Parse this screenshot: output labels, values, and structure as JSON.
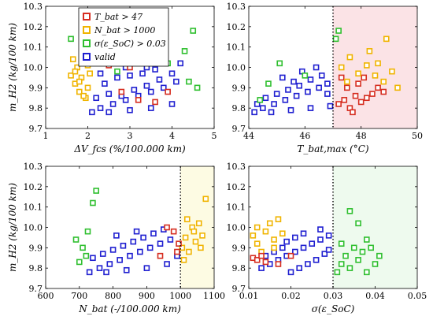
{
  "chart_data": [
    {
      "type": "scatter",
      "xlabel": "ΔV_fcs (%/100.000 km)",
      "ylabel": "m_H2 (kg/100 km)",
      "xlim": [
        1,
        5
      ],
      "ylim": [
        9.7,
        10.3
      ],
      "xticks": [
        "1",
        "2",
        "3",
        "4",
        "5"
      ],
      "yticks": [
        "9.7",
        "9.8",
        "9.9",
        "10.0",
        "10.1",
        "10.2",
        "10.3"
      ],
      "legend": {
        "position": "top-left",
        "entries": [
          {
            "label": "T_bat > 47",
            "color": "#d62d20"
          },
          {
            "label": "N_bat > 1000",
            "color": "#f0b400"
          },
          {
            "label": "σ(ε_SoC) > 0.03",
            "color": "#2fbf2f"
          },
          {
            "label": "valid",
            "color": "#1f1fd0"
          }
        ]
      },
      "series": [
        {
          "color": "#1f1fd0",
          "points": [
            [
              2.1,
              9.78
            ],
            [
              2.3,
              9.8
            ],
            [
              2.6,
              9.82
            ],
            [
              2.9,
              9.84
            ],
            [
              3.2,
              9.86
            ],
            [
              3.5,
              9.88
            ],
            [
              3.8,
              9.9
            ],
            [
              4.1,
              9.93
            ],
            [
              2.2,
              9.85
            ],
            [
              2.5,
              9.87
            ],
            [
              2.8,
              9.86
            ],
            [
              3.1,
              9.89
            ],
            [
              3.4,
              9.91
            ],
            [
              3.7,
              9.94
            ],
            [
              4.0,
              9.97
            ],
            [
              2.4,
              9.92
            ],
            [
              2.7,
              9.95
            ],
            [
              3.0,
              9.96
            ],
            [
              3.3,
              9.97
            ],
            [
              3.6,
              9.99
            ],
            [
              4.2,
              10.02
            ],
            [
              2.5,
              9.78
            ],
            [
              3.0,
              9.79
            ],
            [
              3.5,
              9.8
            ],
            [
              4.0,
              9.82
            ],
            [
              2.3,
              9.97
            ],
            [
              2.9,
              10.0
            ],
            [
              3.4,
              10.0
            ]
          ]
        },
        {
          "color": "#f0b400",
          "points": [
            [
              1.6,
              9.96
            ],
            [
              1.7,
              9.92
            ],
            [
              1.75,
              10.0
            ],
            [
              1.8,
              9.88
            ],
            [
              1.85,
              9.95
            ],
            [
              1.9,
              10.02
            ],
            [
              2.0,
              9.9
            ],
            [
              1.95,
              9.85
            ],
            [
              1.7,
              9.98
            ],
            [
              1.8,
              9.93
            ],
            [
              2.05,
              9.97
            ],
            [
              1.65,
              10.04
            ],
            [
              1.9,
              9.86
            ],
            [
              2.0,
              10.01
            ]
          ]
        },
        {
          "color": "#2fbf2f",
          "points": [
            [
              1.6,
              10.14
            ],
            [
              3.9,
              10.02
            ],
            [
              4.3,
              10.08
            ],
            [
              4.5,
              10.18
            ],
            [
              4.6,
              9.9
            ],
            [
              4.4,
              9.93
            ],
            [
              2.7,
              9.98
            ]
          ]
        },
        {
          "color": "#d62d20",
          "points": [
            [
              3.0,
              10.0
            ],
            [
              2.8,
              9.88
            ],
            [
              3.2,
              9.84
            ],
            [
              3.6,
              9.83
            ],
            [
              2.5,
              10.01
            ],
            [
              3.9,
              9.88
            ]
          ]
        }
      ]
    },
    {
      "type": "scatter",
      "xlabel": "T_bat,max (°C)",
      "ylabel": "",
      "xlim": [
        44,
        50
      ],
      "ylim": [
        9.7,
        10.3
      ],
      "xticks": [
        "44",
        "46",
        "48",
        "50"
      ],
      "yticks": [
        "9.7",
        "9.8",
        "9.9",
        "10.0",
        "10.1",
        "10.2",
        "10.3"
      ],
      "threshold_x": 47,
      "shade": {
        "from": 47,
        "to": 50,
        "color": "#fbe3e6"
      },
      "series": [
        {
          "color": "#1f1fd0",
          "points": [
            [
              44.2,
              9.78
            ],
            [
              44.5,
              9.8
            ],
            [
              44.9,
              9.82
            ],
            [
              45.3,
              9.84
            ],
            [
              45.7,
              9.86
            ],
            [
              46.1,
              9.88
            ],
            [
              46.5,
              9.9
            ],
            [
              46.8,
              9.92
            ],
            [
              44.6,
              9.85
            ],
            [
              45.0,
              9.87
            ],
            [
              45.4,
              9.89
            ],
            [
              45.8,
              9.91
            ],
            [
              46.2,
              9.94
            ],
            [
              46.6,
              9.96
            ],
            [
              44.8,
              9.78
            ],
            [
              45.5,
              9.79
            ],
            [
              46.2,
              9.8
            ],
            [
              46.9,
              9.81
            ],
            [
              45.2,
              9.95
            ],
            [
              45.9,
              9.98
            ],
            [
              46.4,
              10.0
            ],
            [
              46.8,
              9.87
            ],
            [
              44.3,
              9.82
            ],
            [
              45.6,
              9.93
            ]
          ]
        },
        {
          "color": "#d62d20",
          "points": [
            [
              47.2,
              9.82
            ],
            [
              47.4,
              9.84
            ],
            [
              47.6,
              9.8
            ],
            [
              47.8,
              9.86
            ],
            [
              48.0,
              9.83
            ],
            [
              48.2,
              9.85
            ],
            [
              47.5,
              9.9
            ],
            [
              47.9,
              9.92
            ],
            [
              48.4,
              9.87
            ],
            [
              48.6,
              9.9
            ],
            [
              47.3,
              9.95
            ],
            [
              48.8,
              9.88
            ],
            [
              47.7,
              9.78
            ],
            [
              48.1,
              9.95
            ]
          ]
        },
        {
          "color": "#f0b400",
          "points": [
            [
              47.3,
              10.0
            ],
            [
              47.6,
              10.05
            ],
            [
              47.9,
              9.97
            ],
            [
              48.2,
              10.01
            ],
            [
              48.5,
              9.96
            ],
            [
              48.8,
              9.93
            ],
            [
              49.1,
              9.98
            ],
            [
              48.9,
              10.14
            ],
            [
              48.3,
              10.08
            ],
            [
              47.5,
              9.93
            ],
            [
              48.6,
              10.02
            ],
            [
              49.3,
              9.9
            ]
          ]
        },
        {
          "color": "#2fbf2f",
          "points": [
            [
              44.7,
              9.92
            ],
            [
              47.1,
              10.14
            ],
            [
              47.2,
              10.18
            ],
            [
              45.1,
              10.02
            ],
            [
              44.4,
              9.84
            ],
            [
              46.0,
              9.96
            ]
          ]
        }
      ]
    },
    {
      "type": "scatter",
      "xlabel": "N_bat (-/100.000 km)",
      "ylabel": "m_H2 (kg/100 km)",
      "xlim": [
        600,
        1100
      ],
      "ylim": [
        9.7,
        10.3
      ],
      "xticks": [
        "600",
        "700",
        "800",
        "900",
        "1000",
        "1100"
      ],
      "yticks": [
        "9.7",
        "9.8",
        "9.9",
        "10.0",
        "10.1",
        "10.2",
        "10.3"
      ],
      "threshold_x": 1000,
      "shade": {
        "from": 1000,
        "to": 1100,
        "color": "#fdfbe3"
      },
      "series": [
        {
          "color": "#1f1fd0",
          "points": [
            [
              730,
              9.78
            ],
            [
              760,
              9.8
            ],
            [
              790,
              9.82
            ],
            [
              820,
              9.84
            ],
            [
              850,
              9.86
            ],
            [
              880,
              9.88
            ],
            [
              910,
              9.9
            ],
            [
              940,
              9.92
            ],
            [
              970,
              9.94
            ],
            [
              740,
              9.85
            ],
            [
              770,
              9.87
            ],
            [
              800,
              9.89
            ],
            [
              830,
              9.91
            ],
            [
              860,
              9.93
            ],
            [
              890,
              9.95
            ],
            [
              920,
              9.97
            ],
            [
              950,
              9.99
            ],
            [
              780,
              9.78
            ],
            [
              840,
              9.79
            ],
            [
              900,
              9.8
            ],
            [
              960,
              9.82
            ],
            [
              810,
              9.96
            ],
            [
              870,
              9.98
            ],
            [
              990,
              9.86
            ]
          ]
        },
        {
          "color": "#f0b400",
          "points": [
            [
              1005,
              9.9
            ],
            [
              1015,
              9.95
            ],
            [
              1025,
              9.88
            ],
            [
              1035,
              10.0
            ],
            [
              1045,
              9.93
            ],
            [
              1055,
              10.02
            ],
            [
              1065,
              9.96
            ],
            [
              1075,
              10.14
            ],
            [
              1010,
              9.84
            ],
            [
              1040,
              9.98
            ],
            [
              1060,
              9.9
            ],
            [
              1020,
              10.04
            ]
          ]
        },
        {
          "color": "#2fbf2f",
          "points": [
            [
              690,
              9.94
            ],
            [
              710,
              9.9
            ],
            [
              720,
              9.86
            ],
            [
              740,
              10.12
            ],
            [
              750,
              10.18
            ],
            [
              700,
              9.83
            ],
            [
              725,
              9.98
            ]
          ]
        },
        {
          "color": "#d62d20",
          "points": [
            [
              960,
              10.0
            ],
            [
              980,
              9.98
            ],
            [
              995,
              9.92
            ],
            [
              940,
              9.86
            ],
            [
              990,
              9.88
            ]
          ]
        }
      ]
    },
    {
      "type": "scatter",
      "xlabel": "σ(ε_SoC)",
      "ylabel": "",
      "xlim": [
        0.01,
        0.05
      ],
      "ylim": [
        9.7,
        10.3
      ],
      "xticks": [
        "0.01",
        "0.02",
        "0.03",
        "0.04",
        "0.05"
      ],
      "yticks": [
        "9.7",
        "9.8",
        "9.9",
        "10.0",
        "10.1",
        "10.2",
        "10.3"
      ],
      "threshold_x": 0.03,
      "shade": {
        "from": 0.03,
        "to": 0.05,
        "color": "#eefaee"
      },
      "series": [
        {
          "color": "#1f1fd0",
          "points": [
            [
              0.013,
              9.8
            ],
            [
              0.015,
              9.82
            ],
            [
              0.017,
              9.84
            ],
            [
              0.019,
              9.86
            ],
            [
              0.021,
              9.88
            ],
            [
              0.023,
              9.9
            ],
            [
              0.025,
              9.92
            ],
            [
              0.027,
              9.94
            ],
            [
              0.029,
              9.96
            ],
            [
              0.014,
              9.86
            ],
            [
              0.016,
              9.88
            ],
            [
              0.018,
              9.9
            ],
            [
              0.02,
              9.78
            ],
            [
              0.022,
              9.8
            ],
            [
              0.024,
              9.82
            ],
            [
              0.026,
              9.84
            ],
            [
              0.028,
              9.87
            ],
            [
              0.021,
              9.95
            ],
            [
              0.023,
              9.97
            ],
            [
              0.027,
              9.99
            ],
            [
              0.029,
              9.89
            ],
            [
              0.019,
              9.93
            ]
          ]
        },
        {
          "color": "#f0b400",
          "points": [
            [
              0.011,
              9.96
            ],
            [
              0.012,
              9.92
            ],
            [
              0.014,
              9.98
            ],
            [
              0.015,
              10.02
            ],
            [
              0.016,
              9.94
            ],
            [
              0.017,
              10.04
            ],
            [
              0.018,
              9.97
            ],
            [
              0.013,
              9.88
            ],
            [
              0.012,
              10.0
            ],
            [
              0.016,
              9.9
            ]
          ]
        },
        {
          "color": "#2fbf2f",
          "points": [
            [
              0.031,
              9.78
            ],
            [
              0.032,
              9.82
            ],
            [
              0.033,
              9.86
            ],
            [
              0.034,
              9.8
            ],
            [
              0.035,
              9.9
            ],
            [
              0.036,
              9.84
            ],
            [
              0.037,
              9.88
            ],
            [
              0.038,
              9.94
            ],
            [
              0.039,
              9.9
            ],
            [
              0.04,
              9.82
            ],
            [
              0.041,
              9.86
            ],
            [
              0.036,
              10.02
            ],
            [
              0.034,
              10.08
            ],
            [
              0.032,
              9.92
            ],
            [
              0.038,
              9.78
            ]
          ]
        },
        {
          "color": "#d62d20",
          "points": [
            [
              0.011,
              9.85
            ],
            [
              0.012,
              9.84
            ],
            [
              0.013,
              9.86
            ],
            [
              0.014,
              9.83
            ],
            [
              0.017,
              9.82
            ],
            [
              0.02,
              9.86
            ]
          ]
        }
      ]
    }
  ]
}
